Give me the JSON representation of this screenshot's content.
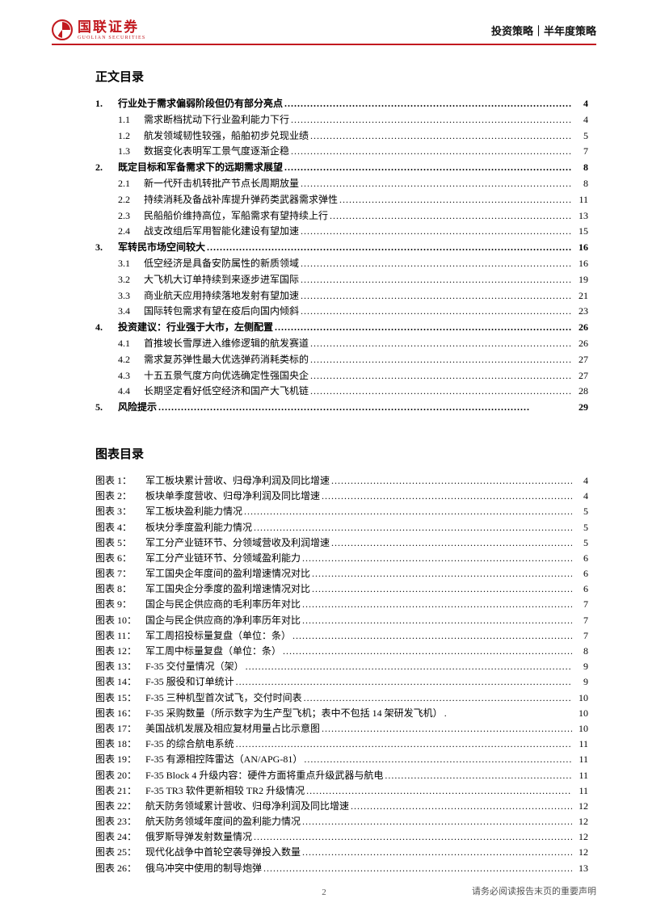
{
  "header": {
    "logo_cn": "国联证券",
    "logo_en": "GUOLIAN SECURITIES",
    "right": "投资策略｜半年度策略"
  },
  "toc": {
    "title": "正文目录",
    "items": [
      {
        "num": "1.",
        "label": "行业处于需求偏弱阶段但仍有部分亮点",
        "page": "4",
        "bold": true
      },
      {
        "num": "1.1",
        "label": "需求断档扰动下行业盈利能力下行",
        "page": "4",
        "sub": true
      },
      {
        "num": "1.2",
        "label": "航发领域韧性较强，船舶初步兑现业绩",
        "page": "5",
        "sub": true
      },
      {
        "num": "1.3",
        "label": "数据变化表明军工景气度逐渐企稳",
        "page": "7",
        "sub": true
      },
      {
        "num": "2.",
        "label": "既定目标和军备需求下的远期需求展望",
        "page": "8",
        "bold": true
      },
      {
        "num": "2.1",
        "label": "新一代歼击机转批产节点长周期放量",
        "page": "8",
        "sub": true
      },
      {
        "num": "2.2",
        "label": "持续消耗及备战补库提升弹药类武器需求弹性",
        "page": "11",
        "sub": true
      },
      {
        "num": "2.3",
        "label": "民船船价维持高位，军船需求有望持续上行",
        "page": "13",
        "sub": true
      },
      {
        "num": "2.4",
        "label": "战支改组后军用智能化建设有望加速",
        "page": "15",
        "sub": true
      },
      {
        "num": "3.",
        "label": "军转民市场空间较大",
        "page": "16",
        "bold": true
      },
      {
        "num": "3.1",
        "label": "低空经济是具备安防属性的新质领域",
        "page": "16",
        "sub": true
      },
      {
        "num": "3.2",
        "label": "大飞机大订单持续到来逐步进军国际",
        "page": "19",
        "sub": true
      },
      {
        "num": "3.3",
        "label": "商业航天应用持续落地发射有望加速",
        "page": "21",
        "sub": true
      },
      {
        "num": "3.4",
        "label": "国际转包需求有望在疫后向国内倾斜",
        "page": "23",
        "sub": true
      },
      {
        "num": "4.",
        "label": "投资建议：行业强于大市，左侧配置",
        "page": "26",
        "bold": true
      },
      {
        "num": "4.1",
        "label": "首推坡长雪厚进入维修逻辑的航发赛道",
        "page": "26",
        "sub": true
      },
      {
        "num": "4.2",
        "label": "需求复苏弹性最大优选弹药消耗类标的",
        "page": "27",
        "sub": true
      },
      {
        "num": "4.3",
        "label": "十五五景气度方向优选确定性强国央企",
        "page": "27",
        "sub": true
      },
      {
        "num": "4.4",
        "label": "长期坚定看好低空经济和国产大飞机链",
        "page": "28",
        "sub": true
      },
      {
        "num": "5.",
        "label": "风险提示",
        "page": "29",
        "bold": true
      }
    ]
  },
  "figs": {
    "title": "图表目录",
    "items": [
      {
        "num": "图表 1：",
        "label": "军工板块累计营收、归母净利润及同比增速",
        "page": "4"
      },
      {
        "num": "图表 2：",
        "label": "板块单季度营收、归母净利润及同比增速",
        "page": "4"
      },
      {
        "num": "图表 3：",
        "label": "军工板块盈利能力情况",
        "page": "5"
      },
      {
        "num": "图表 4：",
        "label": "板块分季度盈利能力情况",
        "page": "5"
      },
      {
        "num": "图表 5：",
        "label": "军工分产业链环节、分领域营收及利润增速",
        "page": "5"
      },
      {
        "num": "图表 6：",
        "label": "军工分产业链环节、分领域盈利能力",
        "page": "6"
      },
      {
        "num": "图表 7：",
        "label": "军工国央企年度间的盈利增速情况对比",
        "page": "6"
      },
      {
        "num": "图表 8：",
        "label": "军工国央企分季度的盈利增速情况对比",
        "page": "6"
      },
      {
        "num": "图表 9：",
        "label": "国企与民企供应商的毛利率历年对比",
        "page": "7"
      },
      {
        "num": "图表 10：",
        "label": "国企与民企供应商的净利率历年对比",
        "page": "7"
      },
      {
        "num": "图表 11：",
        "label": "军工周招投标量复盘（单位：条）",
        "page": "7"
      },
      {
        "num": "图表 12：",
        "label": "军工周中标量复盘（单位：条）",
        "page": "8"
      },
      {
        "num": "图表 13：",
        "label": "F-35 交付量情况（架）",
        "page": "9"
      },
      {
        "num": "图表 14：",
        "label": "F-35 服役和订单统计",
        "page": "9"
      },
      {
        "num": "图表 15：",
        "label": "F-35 三种机型首次试飞，交付时间表",
        "page": "10"
      },
      {
        "num": "图表 16：",
        "label": "F-35 采购数量（所示数字为生产型飞机；表中不包括 14 架研发飞机）",
        "page": "10",
        "nodots": true
      },
      {
        "num": "图表 17：",
        "label": "美国战机发展及相应复材用量占比示意图",
        "page": "10"
      },
      {
        "num": "图表 18：",
        "label": "F-35 的综合航电系统",
        "page": "11"
      },
      {
        "num": "图表 19：",
        "label": "F-35 有源相控阵雷达（AN/APG-81）",
        "page": "11"
      },
      {
        "num": "图表 20：",
        "label": "F-35 Block 4 升级内容：硬件方面将重点升级武器与航电",
        "page": "11"
      },
      {
        "num": "图表 21：",
        "label": "F-35 TR3 软件更新相较 TR2 升级情况",
        "page": "11"
      },
      {
        "num": "图表 22：",
        "label": "航天防务领域累计营收、归母净利润及同比增速",
        "page": "12"
      },
      {
        "num": "图表 23：",
        "label": "航天防务领域年度间的盈利能力情况",
        "page": "12"
      },
      {
        "num": "图表 24：",
        "label": "俄罗斯导弹发射数量情况",
        "page": "12"
      },
      {
        "num": "图表 25：",
        "label": "现代化战争中首轮空袭导弹投入数量",
        "page": "12"
      },
      {
        "num": "图表 26：",
        "label": "俄乌冲突中使用的制导炮弹",
        "page": "13"
      }
    ]
  },
  "footer": {
    "page": "2",
    "note": "请务必阅读报告末页的重要声明"
  },
  "colors": {
    "brand": "#c2191f",
    "text": "#000000",
    "footer": "#555555",
    "bg": "#ffffff"
  }
}
